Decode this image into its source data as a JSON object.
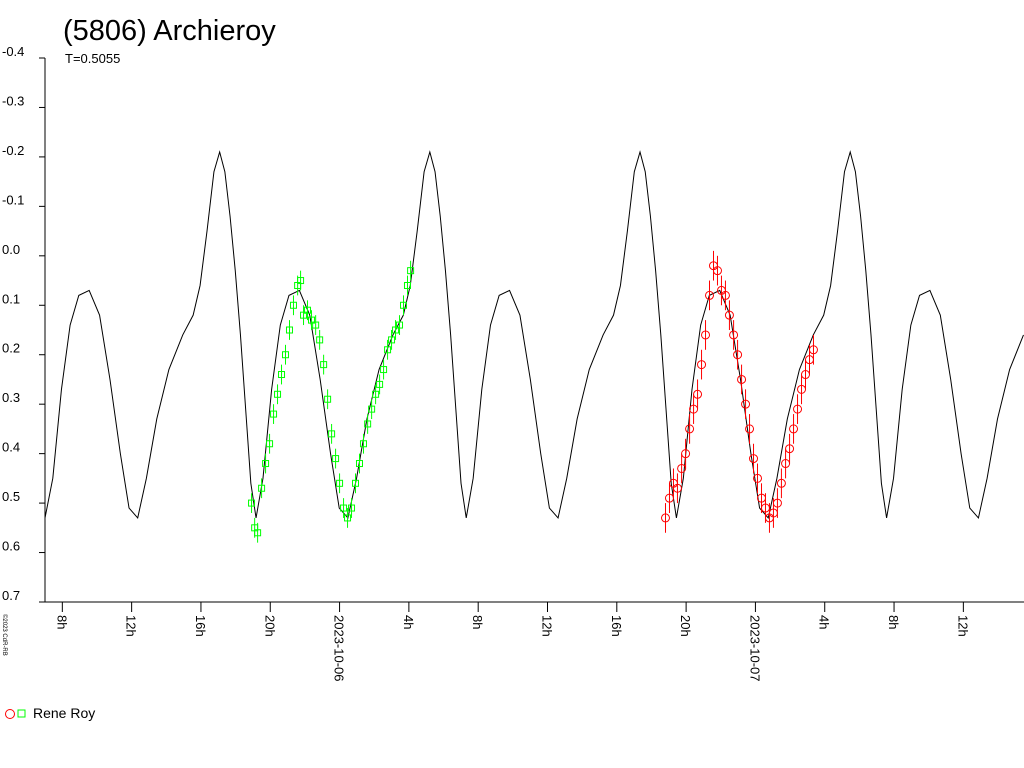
{
  "chart_data": {
    "type": "scatter",
    "title": "(5806) Archieroy",
    "subtitle": "T=0.5055",
    "credit": "©2023 CdR-RB",
    "legend": "Rene Roy",
    "yinvert": true,
    "xlim": [
      -17,
      39.5
    ],
    "ylim": [
      -0.4,
      0.7
    ],
    "yticks": [
      -0.4,
      -0.3,
      -0.2,
      -0.1,
      {
        "value": 0,
        "label": "0.0"
      },
      0.1,
      0.2,
      0.3,
      0.4,
      0.5,
      0.6,
      0.7
    ],
    "xticks": [
      {
        "value": -16,
        "label": "8h"
      },
      {
        "value": -12,
        "label": "12h"
      },
      {
        "value": -8,
        "label": "16h"
      },
      {
        "value": -4,
        "label": "20h"
      },
      {
        "value": 0,
        "label": "2023-10-06"
      },
      {
        "value": 4,
        "label": "4h"
      },
      {
        "value": 8,
        "label": "8h"
      },
      {
        "value": 12,
        "label": "12h"
      },
      {
        "value": 16,
        "label": "16h"
      },
      {
        "value": 20,
        "label": "20h"
      },
      {
        "value": 24,
        "label": "2023-10-07"
      },
      {
        "value": 28,
        "label": "4h"
      },
      {
        "value": 32,
        "label": "8h"
      },
      {
        "value": 36,
        "label": "12h"
      }
    ],
    "series": [
      {
        "marker": "line",
        "color": "#000000",
        "x": [
          -17,
          -16.55,
          -16.05,
          -15.55,
          -15.05,
          -14.45,
          -13.85,
          -13.25,
          -12.65,
          -12.15,
          -11.65,
          -11.15,
          -10.55,
          -9.85,
          -9.05,
          -8.45,
          -8.05,
          -7.65,
          -7.25,
          -6.92,
          -6.62,
          -6.32,
          -6.02,
          -5.72,
          -5.42,
          -5.12,
          -4.82,
          -4.42,
          -3.92,
          -3.42,
          -2.92,
          -2.32,
          -1.72,
          -1.12,
          -0.52,
          -0.02,
          0.48,
          0.98,
          1.58,
          2.28,
          3.08,
          3.68,
          4.08,
          4.48,
          4.88,
          5.21,
          5.51,
          5.81,
          6.11,
          6.41,
          6.71,
          7.01,
          7.31,
          7.71,
          8.21,
          8.71,
          9.21,
          9.81,
          10.41,
          11.01,
          11.61,
          12.11,
          12.61,
          13.11,
          13.71,
          14.41,
          15.21,
          15.81,
          16.21,
          16.61,
          17.01,
          17.34,
          17.64,
          17.94,
          18.24,
          18.54,
          18.84,
          19.14,
          19.44,
          19.84,
          20.34,
          20.84,
          21.34,
          21.94,
          22.54,
          23.14,
          23.74,
          24.24,
          24.74,
          25.24,
          25.84,
          26.54,
          27.34,
          27.94,
          28.34,
          28.74,
          29.14,
          29.47,
          29.77,
          30.07,
          30.37,
          30.67,
          30.97,
          31.27,
          31.57,
          31.97,
          32.47,
          32.97,
          33.47,
          34.07,
          34.67,
          35.27,
          35.87,
          36.37,
          36.87,
          37.37,
          37.97,
          38.67,
          39.47
        ],
        "values": [
          0.53,
          0.45,
          0.27,
          0.14,
          0.08,
          0.07,
          0.12,
          0.25,
          0.4,
          0.51,
          0.53,
          0.45,
          0.33,
          0.23,
          0.16,
          0.12,
          0.06,
          -0.05,
          -0.17,
          -0.21,
          -0.17,
          -0.08,
          0.03,
          0.16,
          0.31,
          0.46,
          0.53,
          0.45,
          0.27,
          0.14,
          0.08,
          0.07,
          0.12,
          0.25,
          0.4,
          0.51,
          0.53,
          0.45,
          0.33,
          0.23,
          0.16,
          0.12,
          0.06,
          -0.05,
          -0.17,
          -0.21,
          -0.17,
          -0.08,
          0.03,
          0.16,
          0.31,
          0.46,
          0.53,
          0.45,
          0.27,
          0.14,
          0.08,
          0.07,
          0.12,
          0.25,
          0.4,
          0.51,
          0.53,
          0.45,
          0.33,
          0.23,
          0.16,
          0.12,
          0.06,
          -0.05,
          -0.17,
          -0.21,
          -0.17,
          -0.08,
          0.03,
          0.16,
          0.31,
          0.46,
          0.53,
          0.45,
          0.27,
          0.14,
          0.08,
          0.07,
          0.12,
          0.25,
          0.4,
          0.51,
          0.53,
          0.45,
          0.33,
          0.23,
          0.16,
          0.12,
          0.06,
          -0.05,
          -0.17,
          -0.21,
          -0.17,
          -0.08,
          0.03,
          0.16,
          0.31,
          0.46,
          0.53,
          0.45,
          0.27,
          0.14,
          0.08,
          0.07,
          0.12,
          0.25,
          0.4,
          0.51,
          0.53,
          0.45,
          0.33,
          0.23,
          0.16
        ]
      },
      {
        "marker": "square",
        "color": "#00ff00",
        "error": 0.02,
        "x": [
          -5.08,
          -4.9,
          -4.73,
          -4.5,
          -4.27,
          -4.04,
          -3.81,
          -3.58,
          -3.35,
          -3.12,
          -2.89,
          -2.66,
          -2.42,
          -2.25,
          -2.08,
          -1.85,
          -1.62,
          -1.38,
          -1.15,
          -0.92,
          -0.69,
          -0.46,
          -0.23,
          0.0,
          0.23,
          0.46,
          0.69,
          0.92,
          1.15,
          1.38,
          1.62,
          1.85,
          2.08,
          2.31,
          2.54,
          2.77,
          3.0,
          3.23,
          3.46,
          3.69,
          3.92,
          4.1
        ],
        "values": [
          0.5,
          0.55,
          0.56,
          0.47,
          0.42,
          0.38,
          0.32,
          0.28,
          0.24,
          0.2,
          0.15,
          0.1,
          0.06,
          0.05,
          0.12,
          0.11,
          0.13,
          0.14,
          0.17,
          0.22,
          0.29,
          0.36,
          0.41,
          0.46,
          0.51,
          0.53,
          0.51,
          0.46,
          0.42,
          0.38,
          0.34,
          0.31,
          0.28,
          0.26,
          0.23,
          0.19,
          0.17,
          0.15,
          0.14,
          0.1,
          0.06,
          0.03
        ]
      },
      {
        "marker": "circle",
        "color": "#ff0000",
        "error": 0.03,
        "x": [
          18.81,
          19.04,
          19.27,
          19.5,
          19.74,
          19.97,
          20.2,
          20.43,
          20.66,
          20.89,
          21.12,
          21.35,
          21.58,
          21.81,
          22.04,
          22.27,
          22.5,
          22.74,
          22.97,
          23.2,
          23.43,
          23.66,
          23.89,
          24.12,
          24.35,
          24.58,
          24.81,
          25.04,
          25.27,
          25.5,
          25.74,
          25.97,
          26.2,
          26.43,
          26.66,
          26.89,
          27.12,
          27.35
        ],
        "values": [
          0.53,
          0.49,
          0.46,
          0.47,
          0.43,
          0.4,
          0.35,
          0.31,
          0.28,
          0.22,
          0.16,
          0.08,
          0.02,
          0.03,
          0.07,
          0.08,
          0.12,
          0.16,
          0.2,
          0.25,
          0.3,
          0.35,
          0.41,
          0.45,
          0.49,
          0.51,
          0.53,
          0.52,
          0.5,
          0.46,
          0.42,
          0.39,
          0.35,
          0.31,
          0.27,
          0.24,
          0.21,
          0.19
        ]
      }
    ]
  }
}
